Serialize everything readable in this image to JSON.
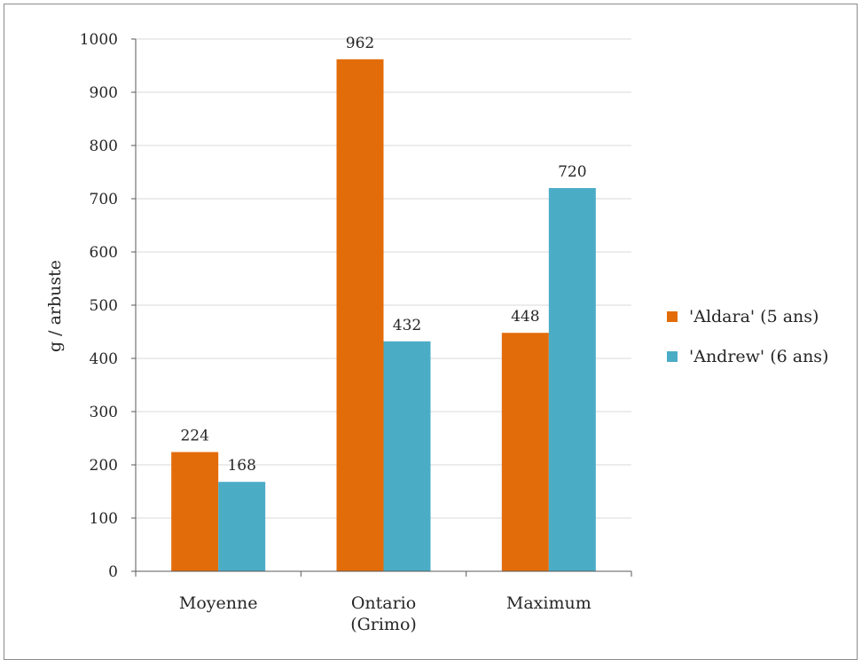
{
  "chart_data": {
    "type": "bar",
    "ylabel": "g / arbuste",
    "xlabel": "",
    "ylim": [
      0,
      1000
    ],
    "ytick_step": 100,
    "grid": true,
    "legend_position": "right",
    "categories": [
      [
        "Moyenne"
      ],
      [
        "Ontario",
        "(Grimo)"
      ],
      [
        "Maximum"
      ]
    ],
    "series": [
      {
        "name": "'Aldara' (5 ans)",
        "color": "#E36C0A",
        "values": [
          224,
          962,
          448
        ]
      },
      {
        "name": "'Andrew' (6 ans)",
        "color": "#4BACC6",
        "values": [
          168,
          432,
          720
        ]
      }
    ]
  }
}
